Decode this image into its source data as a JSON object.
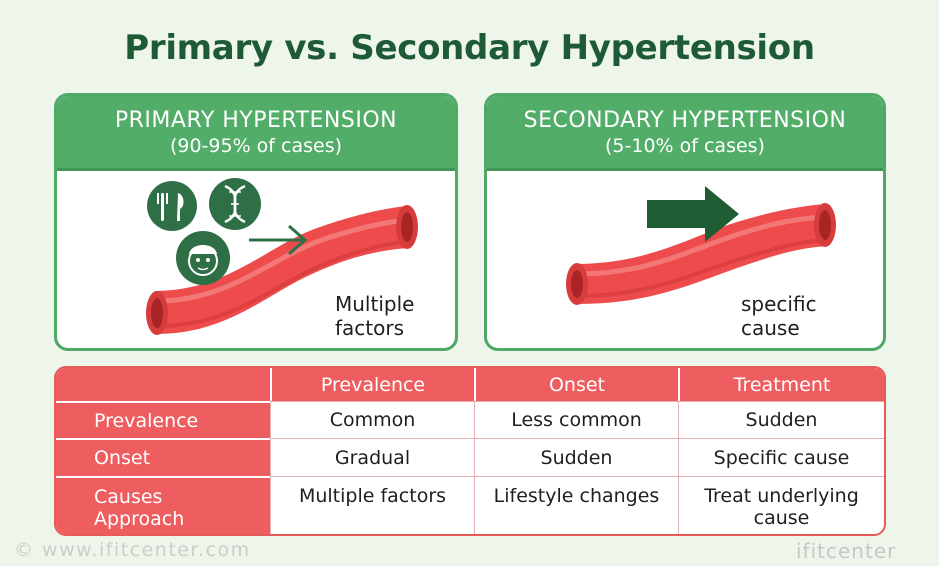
{
  "title": "Primary vs. Secondary Hypertension",
  "primary": {
    "heading": "PRIMARY HYPERTENSION",
    "subheading": "(90-95% of cases)",
    "caption_line1": "Multiple",
    "caption_line2": "factors",
    "icons": [
      "fork-knife-icon",
      "dna-icon",
      "elderly-face-icon",
      "arrow-right-icon",
      "blood-vessel"
    ]
  },
  "secondary": {
    "heading": "SECONDARY HYPERTENSION",
    "subheading": "(5-10% of cases)",
    "caption_line1": "specific",
    "caption_line2": "cause",
    "icons": [
      "arrow-right-icon",
      "blood-vessel"
    ]
  },
  "table": {
    "headers": [
      "",
      "Prevalence",
      "Onset",
      "Treatment"
    ],
    "rows": [
      {
        "label_line1": "Prevalence",
        "label_line2": "",
        "cells": [
          [
            "Common"
          ],
          [
            "Less common"
          ],
          [
            "Sudden"
          ]
        ]
      },
      {
        "label_line1": "Onset",
        "label_line2": "",
        "cells": [
          [
            "Gradual"
          ],
          [
            "Sudden"
          ],
          [
            "Specific cause"
          ]
        ]
      },
      {
        "label_line1": "Causes",
        "label_line2": "Approach",
        "cells": [
          [
            "Multiple factors"
          ],
          [
            "Lifestyle changes"
          ],
          [
            "Treat underlying",
            "cause"
          ]
        ]
      }
    ]
  },
  "footer": {
    "url": "www.ifitcenter.com",
    "brand": "ifitcenter"
  },
  "colors": {
    "title": "#1e5a36",
    "card_header": "#52ad69",
    "icon_green": "#2f6f45",
    "vessel_red": "#ee4c4c",
    "table_header": "#ee5d5f"
  }
}
